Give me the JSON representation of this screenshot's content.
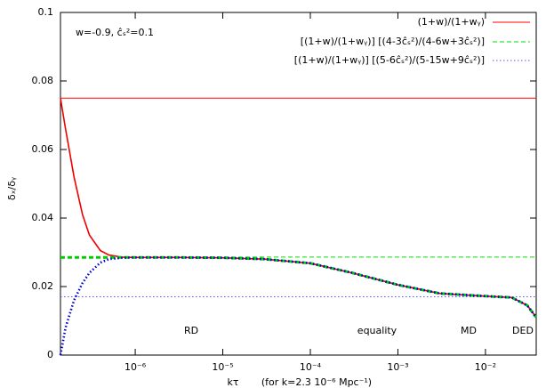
{
  "chart_data": {
    "type": "line",
    "annotation": "w=-0.9, ĉₛ²=0.1",
    "xlabel": "kτ",
    "xlabel_note": "(for k=2.3 10⁻⁶ Mpc⁻¹)",
    "ylabel": "δₓ/δᵧ",
    "era_labels": [
      "RD",
      "equality",
      "MD",
      "DED"
    ],
    "log_x": true,
    "xlim": [
      1.4e-07,
      0.038
    ],
    "ylim": [
      0,
      0.1
    ],
    "xticks": [
      {
        "value": 1e-06,
        "label": "10⁻⁶"
      },
      {
        "value": 1e-05,
        "label": "10⁻⁵"
      },
      {
        "value": 0.0001,
        "label": "10⁻⁴"
      },
      {
        "value": 0.001,
        "label": "10⁻³"
      },
      {
        "value": 0.01,
        "label": "10⁻²"
      }
    ],
    "yticks": [
      0,
      0.02,
      0.04,
      0.06,
      0.08,
      0.1
    ],
    "legend_position": "top-right",
    "series": [
      {
        "name": "(1+w)/(1+wᵧ)",
        "color": "#ff0000",
        "dash": "solid",
        "value": 0.075
      },
      {
        "name": "[(1+w)/(1+wᵧ)] [(4-3ĉₛ²)/(4-6w+3ĉₛ²)]",
        "color": "#00dd00",
        "dash": "dashed",
        "value": 0.0286
      },
      {
        "name": "[(1+w)/(1+wᵧ)] [(5-6ĉₛ²)/(5-15w+9ĉₛ²)]",
        "color": "#5555ff",
        "dash": "dotted",
        "value": 0.017
      }
    ],
    "x": [
      1.4e-07,
      1.6e-07,
      2e-07,
      2.5e-07,
      3e-07,
      4e-07,
      5e-07,
      7e-07,
      1e-06,
      3e-06,
      1e-05,
      3e-05,
      0.0001,
      0.0003,
      0.001,
      0.003,
      0.01,
      0.02,
      0.03,
      0.038
    ],
    "curves": [
      {
        "color": "#ee0000",
        "dash": "solid",
        "values": [
          0.075,
          0.066,
          0.052,
          0.041,
          0.035,
          0.0305,
          0.0292,
          0.0286,
          0.0285,
          0.0285,
          0.0284,
          0.028,
          0.0268,
          0.024,
          0.0205,
          0.018,
          0.0172,
          0.0168,
          0.0145,
          0.011
        ]
      },
      {
        "color": "#00cc00",
        "dash": "dashed",
        "values": [
          0.0285,
          0.0285,
          0.0285,
          0.0285,
          0.0285,
          0.0285,
          0.0285,
          0.0285,
          0.0285,
          0.0285,
          0.0284,
          0.028,
          0.0268,
          0.024,
          0.0205,
          0.018,
          0.0172,
          0.0168,
          0.0145,
          0.011
        ]
      },
      {
        "color": "#0000cc",
        "dash": "dotted",
        "values": [
          0,
          0.008,
          0.016,
          0.021,
          0.024,
          0.027,
          0.028,
          0.0284,
          0.0285,
          0.0285,
          0.0284,
          0.028,
          0.0268,
          0.024,
          0.0205,
          0.018,
          0.0172,
          0.0168,
          0.0145,
          0.011
        ]
      }
    ]
  }
}
